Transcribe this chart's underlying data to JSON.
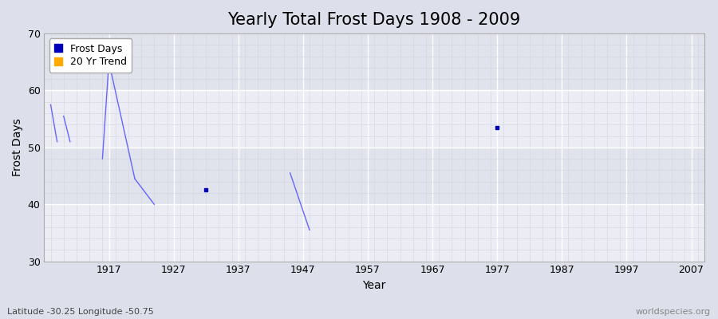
{
  "title": "Yearly Total Frost Days 1908 - 2009",
  "xlabel": "Year",
  "ylabel": "Frost Days",
  "subtitle": "Latitude -30.25 Longitude -50.75",
  "watermark": "worldspecies.org",
  "xlim": [
    1907,
    2009
  ],
  "ylim": [
    30,
    70
  ],
  "xticks": [
    1917,
    1927,
    1937,
    1947,
    1957,
    1967,
    1977,
    1987,
    1997,
    2007
  ],
  "yticks": [
    30,
    40,
    50,
    60,
    70
  ],
  "line_segments": [
    [
      [
        1908,
        57.5
      ],
      [
        1909,
        51
      ]
    ],
    [
      [
        1910,
        55.5
      ],
      [
        1911,
        51
      ]
    ],
    [
      [
        1916,
        48
      ],
      [
        1917,
        65
      ]
    ],
    [
      [
        1917,
        65
      ],
      [
        1921,
        44.5
      ]
    ],
    [
      [
        1921,
        44.5
      ],
      [
        1924,
        40
      ]
    ],
    [
      [
        1945,
        45.5
      ],
      [
        1948,
        35.5
      ]
    ]
  ],
  "scatter_points": [
    [
      1932,
      42.5
    ],
    [
      1977,
      53.5
    ]
  ],
  "line_color": "#6666ff",
  "scatter_color": "#0000bb",
  "legend_frost_color": "#0000bb",
  "legend_trend_color": "#ffaa00",
  "bg_color": "#dde0ea",
  "inner_bg_color": "#e8eaf0",
  "grid_major_color": "#ffffff",
  "grid_minor_color": "#d0d4e0",
  "title_fontsize": 15,
  "axis_label_fontsize": 10,
  "tick_fontsize": 9,
  "legend_fontsize": 9
}
